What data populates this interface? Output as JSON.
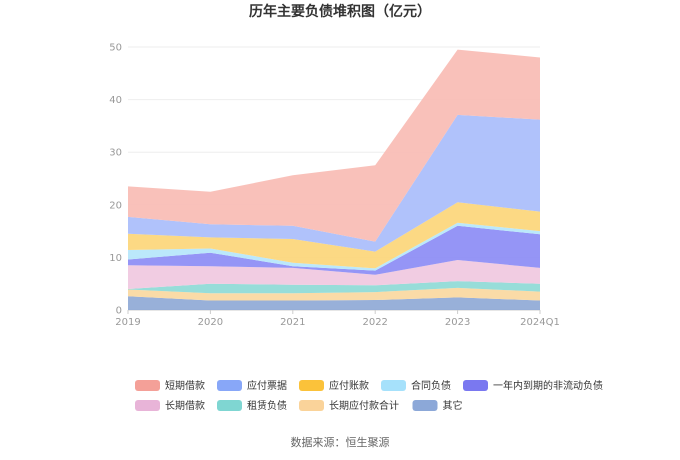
{
  "chart_data": {
    "type": "area",
    "title": "历年主要负债堆积图（亿元）",
    "x": [
      "2019",
      "2020",
      "2021",
      "2022",
      "2023",
      "2024Q1"
    ],
    "ylim": [
      0,
      50
    ],
    "yticks": [
      0,
      10,
      20,
      30,
      40,
      50
    ],
    "grid": true,
    "stacked": true,
    "legend_position": "bottom",
    "series": [
      {
        "name": "其它",
        "color": "#8fa9d6",
        "values": [
          2.6,
          1.8,
          1.8,
          1.9,
          2.4,
          1.8
        ]
      },
      {
        "name": "长期应付款合计",
        "color": "#fad8a0",
        "values": [
          1.3,
          1.4,
          1.4,
          1.5,
          1.8,
          1.7
        ]
      },
      {
        "name": "租赁负债",
        "color": "#8edad6",
        "values": [
          0.1,
          1.8,
          1.6,
          1.3,
          1.3,
          1.5
        ]
      },
      {
        "name": "长期借款",
        "color": "#f0c8e0",
        "values": [
          4.5,
          3.3,
          3.2,
          2.0,
          4.0,
          3.0
        ]
      },
      {
        "name": "一年内到期的非流动负债",
        "color": "#8c8cf5",
        "values": [
          1.1,
          2.6,
          0.3,
          0.8,
          6.5,
          6.4
        ]
      },
      {
        "name": "合同负债",
        "color": "#b5e6fb",
        "values": [
          1.8,
          0.8,
          0.7,
          0.4,
          0.6,
          0.6
        ]
      },
      {
        "name": "应付账款",
        "color": "#fcd67a",
        "values": [
          3.1,
          2.1,
          4.5,
          3.2,
          3.9,
          3.7
        ]
      },
      {
        "name": "应付票据",
        "color": "#a9bdfb",
        "values": [
          3.2,
          2.5,
          2.5,
          1.9,
          16.6,
          17.5
        ]
      },
      {
        "name": "短期借款",
        "color": "#f9bcb4",
        "values": [
          5.8,
          6.2,
          9.6,
          14.5,
          12.4,
          11.8
        ]
      }
    ],
    "legend": [
      {
        "name": "短期借款",
        "color": "#f4a098"
      },
      {
        "name": "应付票据",
        "color": "#88a7f8"
      },
      {
        "name": "应付账款",
        "color": "#fbc23a"
      },
      {
        "name": "合同负债",
        "color": "#a6e1fb"
      },
      {
        "name": "一年内到期的非流动负债",
        "color": "#7a78f0"
      },
      {
        "name": "长期借款",
        "color": "#e8b4d8"
      },
      {
        "name": "租赁负债",
        "color": "#7fd6d2"
      },
      {
        "name": "长期应付款合计",
        "color": "#fad39a"
      },
      {
        "name": "其它",
        "color": "#8ca8d8"
      }
    ],
    "source": "数据来源：恒生聚源"
  }
}
